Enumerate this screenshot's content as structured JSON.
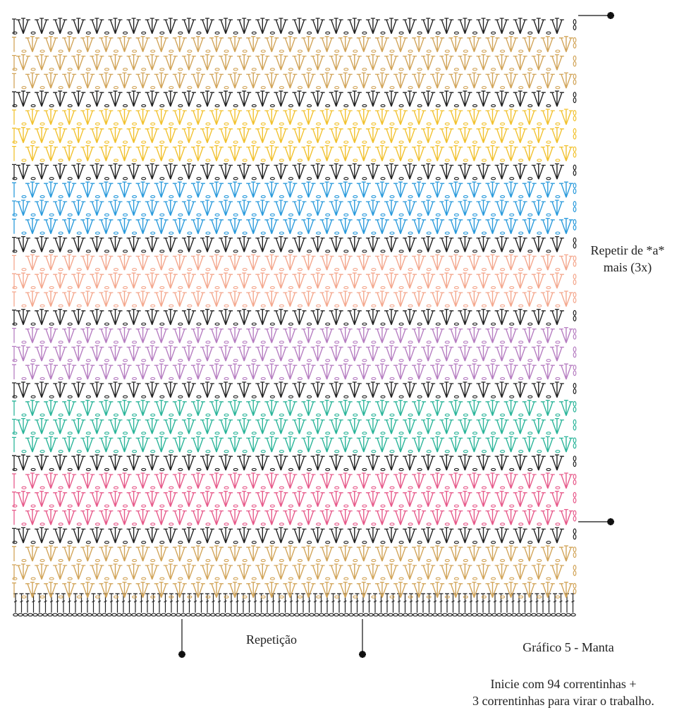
{
  "title": "Gráfico 5 - Manta",
  "repeat_note": {
    "line1": "Repetir de *a*",
    "line2": "mais (3x)"
  },
  "repeat_label": "Repetição",
  "instructions": {
    "line1": "Inicie com 94 correntinhas +",
    "line2": "3 correntinhas para virar o trabalho."
  },
  "markers": [
    "*",
    "*",
    "*",
    "*"
  ],
  "stitch_symbols": [
    "chain",
    "double-crochet",
    "v-stitch-cluster"
  ],
  "colors": {
    "black": "#222222",
    "tan": "#d2a55a",
    "yellow": "#f2c230",
    "blue": "#2b9bdc",
    "peach": "#f4a88e",
    "lavender": "#b77fc2",
    "teal": "#2cb59a",
    "pink": "#e75b8b"
  },
  "row_colors": [
    "black",
    "tan",
    "tan",
    "tan",
    "black",
    "yellow",
    "yellow",
    "yellow",
    "black",
    "blue",
    "blue",
    "blue",
    "black",
    "peach",
    "peach",
    "peach",
    "black",
    "lavender",
    "lavender",
    "lavender",
    "black",
    "teal",
    "teal",
    "teal",
    "black",
    "pink",
    "pink",
    "pink",
    "black",
    "tan",
    "tan",
    "tan"
  ]
}
